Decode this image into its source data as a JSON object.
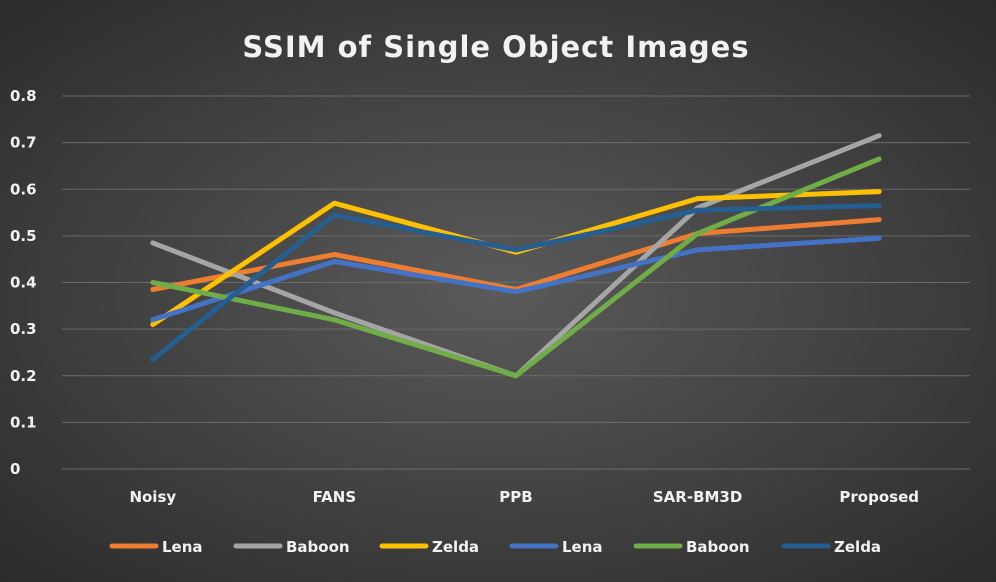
{
  "chart_data": {
    "type": "line",
    "title": "SSIM of Single Object Images",
    "xlabel": "",
    "ylabel": "",
    "categories": [
      "Noisy",
      "FANS",
      "PPB",
      "SAR-BM3D",
      "Proposed"
    ],
    "ylim": [
      0,
      0.8
    ],
    "yticks": [
      "0",
      "0.1",
      "0.2",
      "0.3",
      "0.4",
      "0.5",
      "0.6",
      "0.7",
      "0.8"
    ],
    "grid": true,
    "legend_position": "bottom",
    "series": [
      {
        "name": "Lena",
        "color": "#ED7D31",
        "values": [
          0.385,
          0.46,
          0.385,
          0.505,
          0.535
        ]
      },
      {
        "name": "Baboon",
        "color": "#A5A5A5",
        "values": [
          0.485,
          0.335,
          0.2,
          0.56,
          0.715
        ]
      },
      {
        "name": "Zelda",
        "color": "#FFC000",
        "values": [
          0.31,
          0.57,
          0.465,
          0.58,
          0.595
        ]
      },
      {
        "name": "Lena",
        "color": "#4472C4",
        "values": [
          0.32,
          0.445,
          0.38,
          0.47,
          0.495
        ]
      },
      {
        "name": "Baboon",
        "color": "#70AD47",
        "values": [
          0.4,
          0.32,
          0.2,
          0.505,
          0.665
        ]
      },
      {
        "name": "Zelda",
        "color": "#255E91",
        "values": [
          0.235,
          0.545,
          0.47,
          0.555,
          0.565
        ]
      }
    ]
  }
}
